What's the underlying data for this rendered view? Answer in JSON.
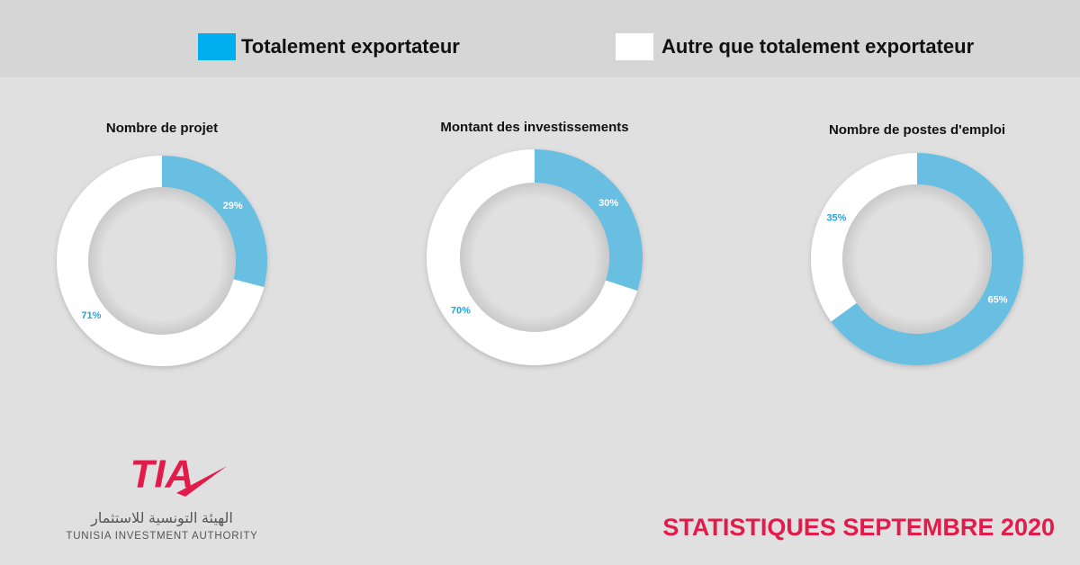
{
  "chart_data": [
    {
      "type": "donut",
      "title": "Nombre de projet",
      "categories": [
        "Totalement exportateur",
        "Autre que totalement exportateur"
      ],
      "values": [
        29,
        71
      ],
      "value_labels": [
        "29%",
        "71%"
      ],
      "colors": [
        "#68bfe1",
        "#ffffff"
      ],
      "label_colors": [
        "#ffffff",
        "#1aa9e6"
      ]
    },
    {
      "type": "donut",
      "title": "Montant des investissements",
      "categories": [
        "Totalement exportateur",
        "Autre que totalement exportateur"
      ],
      "values": [
        30,
        70
      ],
      "value_labels": [
        "30%",
        "70%"
      ],
      "colors": [
        "#68bfe1",
        "#ffffff"
      ],
      "label_colors": [
        "#ffffff",
        "#1aa9e6"
      ]
    },
    {
      "type": "donut",
      "title": "Nombre de postes d'emploi",
      "categories": [
        "Totalement exportateur",
        "Autre que totalement exportateur"
      ],
      "values": [
        65,
        35
      ],
      "value_labels": [
        "65%",
        "35%"
      ],
      "colors": [
        "#68bfe1",
        "#ffffff"
      ],
      "label_colors": [
        "#ffffff",
        "#1aa9e6"
      ]
    }
  ],
  "legend": {
    "colors": [
      "#00aeef",
      "#ffffff"
    ]
  },
  "footer": {
    "logo": "TIA",
    "arabic": "الهيئة التونسية للاستثمار",
    "org": "TUNISIA INVESTMENT AUTHORITY",
    "headline": "STATISTIQUES SEPTEMBRE 2020"
  }
}
